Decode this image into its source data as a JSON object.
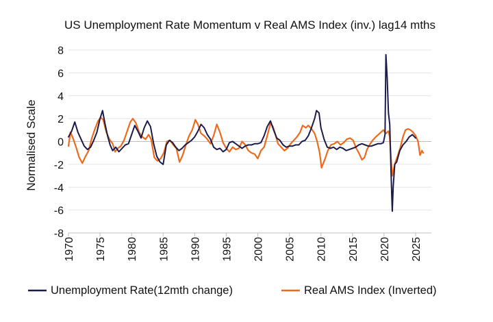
{
  "chart_data": {
    "type": "line",
    "title": "US Unemployment Rate Momentum v Real AMS Index (inv.) lag14 mths",
    "xlabel": "",
    "ylabel": "Normalised Scale",
    "xlim": [
      1970,
      2027.5
    ],
    "ylim": [
      -8,
      8
    ],
    "x_ticks": [
      "1970",
      "1975",
      "1980",
      "1985",
      "1990",
      "1995",
      "2000",
      "2005",
      "2010",
      "2015",
      "2020",
      "2025"
    ],
    "y_ticks": [
      "8",
      "6",
      "4",
      "2",
      "0",
      "-2",
      "-4",
      "-6",
      "-8"
    ],
    "grid": "horizontal",
    "legend_position": "bottom",
    "series": [
      {
        "name": "Unemployment Rate(12mth change)",
        "color": "#1b1b4b",
        "points": [
          [
            1970.0,
            0.4
          ],
          [
            1970.5,
            0.9
          ],
          [
            1971.0,
            1.7
          ],
          [
            1971.5,
            0.8
          ],
          [
            1972.0,
            0.2
          ],
          [
            1972.5,
            -0.4
          ],
          [
            1973.0,
            -0.7
          ],
          [
            1973.5,
            -0.5
          ],
          [
            1974.0,
            0.1
          ],
          [
            1974.5,
            0.8
          ],
          [
            1975.0,
            2.0
          ],
          [
            1975.4,
            2.7
          ],
          [
            1975.8,
            1.5
          ],
          [
            1976.2,
            0.5
          ],
          [
            1976.6,
            -0.3
          ],
          [
            1977.0,
            -0.8
          ],
          [
            1977.5,
            -0.5
          ],
          [
            1978.0,
            -0.9
          ],
          [
            1978.5,
            -0.6
          ],
          [
            1979.0,
            -0.3
          ],
          [
            1979.5,
            -0.2
          ],
          [
            1980.0,
            0.6
          ],
          [
            1980.5,
            1.4
          ],
          [
            1981.0,
            0.9
          ],
          [
            1981.5,
            0.3
          ],
          [
            1982.0,
            1.2
          ],
          [
            1982.5,
            1.8
          ],
          [
            1983.0,
            1.3
          ],
          [
            1983.5,
            -0.2
          ],
          [
            1984.0,
            -1.3
          ],
          [
            1984.5,
            -1.8
          ],
          [
            1985.0,
            -2.0
          ],
          [
            1985.5,
            -0.3
          ],
          [
            1986.0,
            0.1
          ],
          [
            1986.5,
            -0.1
          ],
          [
            1987.0,
            -0.5
          ],
          [
            1987.5,
            -0.8
          ],
          [
            1988.0,
            -0.6
          ],
          [
            1988.5,
            -0.3
          ],
          [
            1989.0,
            -0.1
          ],
          [
            1989.5,
            0.1
          ],
          [
            1990.0,
            0.4
          ],
          [
            1990.5,
            0.9
          ],
          [
            1991.0,
            1.5
          ],
          [
            1991.5,
            1.2
          ],
          [
            1992.0,
            0.6
          ],
          [
            1992.5,
            0.2
          ],
          [
            1993.0,
            -0.5
          ],
          [
            1993.5,
            -0.7
          ],
          [
            1994.0,
            -0.6
          ],
          [
            1994.5,
            -0.9
          ],
          [
            1995.0,
            -0.7
          ],
          [
            1995.5,
            -0.1
          ],
          [
            1996.0,
            0.0
          ],
          [
            1996.5,
            -0.2
          ],
          [
            1997.0,
            -0.4
          ],
          [
            1997.5,
            -0.6
          ],
          [
            1998.0,
            -0.4
          ],
          [
            1998.5,
            -0.3
          ],
          [
            1999.0,
            -0.3
          ],
          [
            1999.5,
            -0.2
          ],
          [
            2000.0,
            -0.2
          ],
          [
            2000.5,
            -0.1
          ],
          [
            2001.0,
            0.5
          ],
          [
            2001.5,
            1.3
          ],
          [
            2002.0,
            1.8
          ],
          [
            2002.5,
            1.0
          ],
          [
            2003.0,
            0.3
          ],
          [
            2003.5,
            0.1
          ],
          [
            2004.0,
            -0.3
          ],
          [
            2004.5,
            -0.5
          ],
          [
            2005.0,
            -0.4
          ],
          [
            2005.5,
            -0.4
          ],
          [
            2006.0,
            -0.3
          ],
          [
            2006.5,
            -0.3
          ],
          [
            2007.0,
            0.0
          ],
          [
            2007.5,
            0.1
          ],
          [
            2008.0,
            0.5
          ],
          [
            2008.5,
            1.2
          ],
          [
            2009.0,
            2.0
          ],
          [
            2009.3,
            2.7
          ],
          [
            2009.7,
            2.5
          ],
          [
            2010.0,
            1.2
          ],
          [
            2010.5,
            0.2
          ],
          [
            2011.0,
            -0.5
          ],
          [
            2011.5,
            -0.6
          ],
          [
            2012.0,
            -0.5
          ],
          [
            2012.5,
            -0.7
          ],
          [
            2013.0,
            -0.5
          ],
          [
            2013.5,
            -0.6
          ],
          [
            2014.0,
            -0.8
          ],
          [
            2014.5,
            -0.7
          ],
          [
            2015.0,
            -0.6
          ],
          [
            2015.5,
            -0.5
          ],
          [
            2016.0,
            -0.3
          ],
          [
            2016.5,
            -0.2
          ],
          [
            2017.0,
            -0.3
          ],
          [
            2017.5,
            -0.4
          ],
          [
            2018.0,
            -0.4
          ],
          [
            2018.5,
            -0.3
          ],
          [
            2019.0,
            -0.2
          ],
          [
            2019.5,
            -0.2
          ],
          [
            2019.9,
            -0.1
          ],
          [
            2020.15,
            0.6
          ],
          [
            2020.3,
            7.6
          ],
          [
            2020.5,
            5.5
          ],
          [
            2020.7,
            2.5
          ],
          [
            2020.9,
            1.5
          ],
          [
            2021.0,
            -0.5
          ],
          [
            2021.15,
            -3.5
          ],
          [
            2021.3,
            -6.1
          ],
          [
            2021.45,
            -4.0
          ],
          [
            2021.7,
            -2.0
          ],
          [
            2022.0,
            -1.8
          ],
          [
            2022.5,
            -0.8
          ],
          [
            2023.0,
            -0.3
          ],
          [
            2023.5,
            0.0
          ],
          [
            2024.0,
            0.4
          ],
          [
            2024.5,
            0.6
          ],
          [
            2025.0,
            0.3
          ]
        ]
      },
      {
        "name": "Real AMS Index (Inverted)",
        "color": "#ee6a1a",
        "points": [
          [
            1970.0,
            -0.4
          ],
          [
            1970.3,
            0.8
          ],
          [
            1970.7,
            0.3
          ],
          [
            1971.2,
            -0.5
          ],
          [
            1971.7,
            -1.4
          ],
          [
            1972.2,
            -1.9
          ],
          [
            1972.7,
            -1.3
          ],
          [
            1973.2,
            -0.8
          ],
          [
            1973.7,
            0.3
          ],
          [
            1974.2,
            1.1
          ],
          [
            1974.7,
            1.8
          ],
          [
            1975.1,
            2.1
          ],
          [
            1975.5,
            1.9
          ],
          [
            1976.0,
            0.8
          ],
          [
            1976.5,
            0.2
          ],
          [
            1977.0,
            -0.2
          ],
          [
            1977.4,
            -0.9
          ],
          [
            1977.8,
            -0.6
          ],
          [
            1978.3,
            -0.4
          ],
          [
            1978.8,
            0.1
          ],
          [
            1979.3,
            0.9
          ],
          [
            1979.8,
            1.7
          ],
          [
            1980.2,
            2.0
          ],
          [
            1980.7,
            1.6
          ],
          [
            1981.2,
            0.8
          ],
          [
            1981.7,
            0.4
          ],
          [
            1982.2,
            0.2
          ],
          [
            1982.7,
            0.6
          ],
          [
            1983.1,
            0.2
          ],
          [
            1983.6,
            -1.4
          ],
          [
            1984.1,
            -1.7
          ],
          [
            1984.6,
            -1.5
          ],
          [
            1985.1,
            -1.0
          ],
          [
            1985.6,
            0.0
          ],
          [
            1986.1,
            0.1
          ],
          [
            1986.6,
            -0.3
          ],
          [
            1987.1,
            -0.6
          ],
          [
            1987.6,
            -1.8
          ],
          [
            1988.1,
            -1.2
          ],
          [
            1988.6,
            -0.3
          ],
          [
            1989.1,
            0.5
          ],
          [
            1989.6,
            1.0
          ],
          [
            1990.1,
            1.9
          ],
          [
            1990.5,
            1.5
          ],
          [
            1991.0,
            0.7
          ],
          [
            1991.5,
            0.5
          ],
          [
            1992.0,
            0.2
          ],
          [
            1992.5,
            -0.2
          ],
          [
            1993.0,
            0.5
          ],
          [
            1993.5,
            1.5
          ],
          [
            1994.0,
            0.8
          ],
          [
            1994.5,
            -0.1
          ],
          [
            1995.0,
            -0.6
          ],
          [
            1995.5,
            -0.9
          ],
          [
            1996.0,
            -0.5
          ],
          [
            1996.5,
            -0.7
          ],
          [
            1997.0,
            -0.6
          ],
          [
            1997.5,
            0.0
          ],
          [
            1998.0,
            -0.3
          ],
          [
            1998.5,
            -0.8
          ],
          [
            1999.0,
            -1.0
          ],
          [
            1999.5,
            -1.1
          ],
          [
            2000.0,
            -1.5
          ],
          [
            2000.5,
            -0.8
          ],
          [
            2001.0,
            -0.5
          ],
          [
            2001.5,
            0.5
          ],
          [
            2002.0,
            1.6
          ],
          [
            2002.4,
            1.3
          ],
          [
            2002.8,
            0.6
          ],
          [
            2003.2,
            -0.2
          ],
          [
            2003.7,
            -0.5
          ],
          [
            2004.2,
            -0.8
          ],
          [
            2004.7,
            -0.6
          ],
          [
            2005.2,
            -0.2
          ],
          [
            2005.7,
            0.1
          ],
          [
            2006.2,
            0.4
          ],
          [
            2006.7,
            0.8
          ],
          [
            2007.1,
            1.4
          ],
          [
            2007.6,
            1.2
          ],
          [
            2008.0,
            1.4
          ],
          [
            2008.5,
            1.1
          ],
          [
            2009.0,
            0.7
          ],
          [
            2009.4,
            0.0
          ],
          [
            2009.8,
            -1.0
          ],
          [
            2010.1,
            -2.3
          ],
          [
            2010.6,
            -1.6
          ],
          [
            2011.1,
            -0.8
          ],
          [
            2011.6,
            -0.3
          ],
          [
            2012.1,
            -0.2
          ],
          [
            2012.6,
            0.0
          ],
          [
            2013.1,
            -0.3
          ],
          [
            2013.6,
            -0.1
          ],
          [
            2014.1,
            0.2
          ],
          [
            2014.6,
            0.3
          ],
          [
            2015.1,
            0.1
          ],
          [
            2015.6,
            -0.6
          ],
          [
            2016.1,
            -1.1
          ],
          [
            2016.5,
            -1.6
          ],
          [
            2016.9,
            -1.4
          ],
          [
            2017.3,
            -0.7
          ],
          [
            2017.7,
            -0.3
          ],
          [
            2018.2,
            0.1
          ],
          [
            2018.7,
            0.4
          ],
          [
            2019.1,
            0.6
          ],
          [
            2019.5,
            0.8
          ],
          [
            2019.9,
            1.0
          ],
          [
            2020.3,
            0.7
          ],
          [
            2020.7,
            0.9
          ],
          [
            2020.9,
            0.4
          ],
          [
            2021.1,
            -1.5
          ],
          [
            2021.3,
            -3.0
          ],
          [
            2021.5,
            -2.5
          ],
          [
            2021.8,
            -1.8
          ],
          [
            2022.2,
            -1.2
          ],
          [
            2022.6,
            -0.5
          ],
          [
            2023.0,
            0.4
          ],
          [
            2023.4,
            1.0
          ],
          [
            2023.8,
            1.1
          ],
          [
            2024.2,
            1.0
          ],
          [
            2024.6,
            0.8
          ],
          [
            2025.0,
            0.5
          ],
          [
            2025.4,
            0.0
          ],
          [
            2025.7,
            -1.2
          ],
          [
            2026.0,
            -0.8
          ],
          [
            2026.2,
            -1.0
          ]
        ]
      }
    ]
  }
}
